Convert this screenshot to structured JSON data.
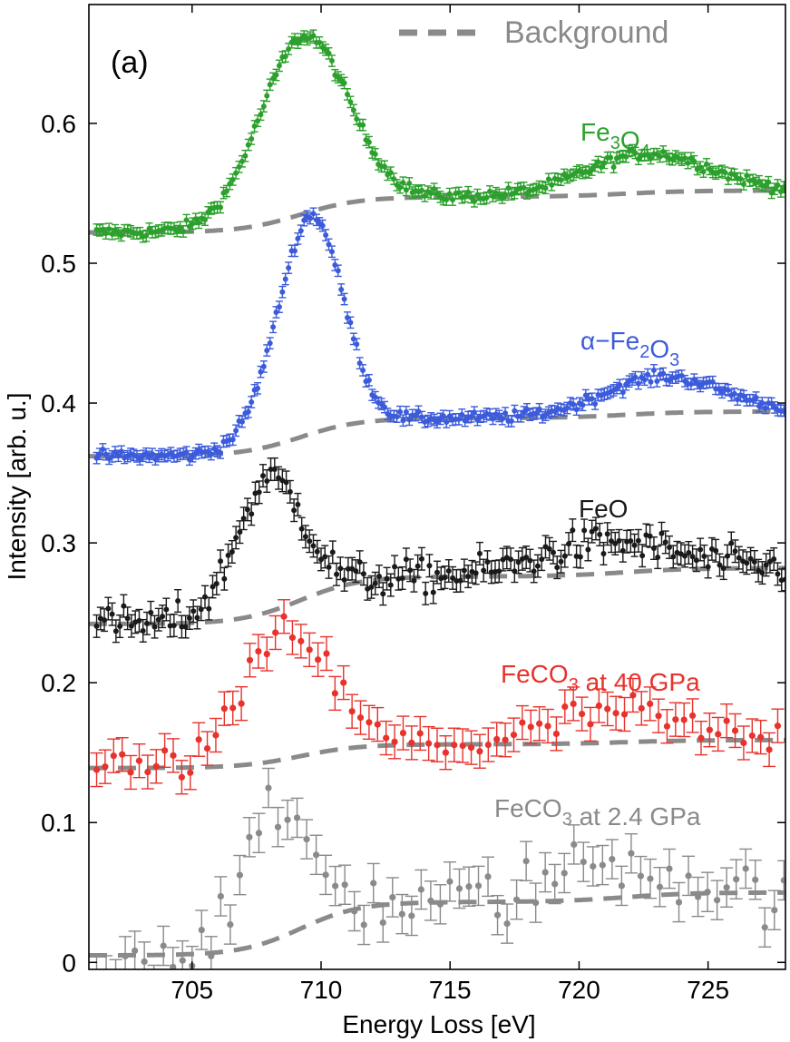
{
  "chart_data": {
    "type": "scatter",
    "panel_label": "(a)",
    "xlabel": "Energy Loss [eV]",
    "ylabel": "Intensity [arb. u.]",
    "xlim": [
      701,
      728
    ],
    "ylim": [
      -0.005,
      0.685
    ],
    "xticks": [
      705,
      710,
      715,
      720,
      725
    ],
    "yticks": [
      0,
      0.1,
      0.2,
      0.3,
      0.4,
      0.5,
      0.6
    ],
    "legend": {
      "label": "Background",
      "style": "dashed",
      "color": "#888888",
      "position": "top-right"
    },
    "colors": {
      "background": "#8a8a8a"
    },
    "series": [
      {
        "key": "fe3o4",
        "label_main": "Fe",
        "label_sub1": "3",
        "label_mid": "O",
        "label_sub2": "4",
        "label_tail": "",
        "color": "#2ca02c",
        "baseline": 0.522,
        "bg_step": 0.03,
        "peaks": [
          {
            "center": 709.3,
            "height": 0.127,
            "width": 1.7
          },
          {
            "center": 722.6,
            "height": 0.028,
            "width": 2.4
          }
        ],
        "x_start": 701.3,
        "x_end": 728,
        "step": 0.12,
        "err": 0.004,
        "noise": 0.002
      },
      {
        "key": "fe2o3",
        "label_main": "α−Fe",
        "label_sub1": "2",
        "label_mid": "O",
        "label_sub2": "3",
        "label_tail": "",
        "color": "#3b5bdb",
        "baseline": 0.362,
        "bg_step": 0.032,
        "peaks": [
          {
            "center": 709.8,
            "height": 0.13,
            "width": 1.15
          },
          {
            "center": 708.6,
            "height": 0.04,
            "width": 1.2
          },
          {
            "center": 723.2,
            "height": 0.026,
            "width": 2.3
          }
        ],
        "x_start": 701.3,
        "x_end": 728,
        "step": 0.12,
        "err": 0.004,
        "noise": 0.002
      },
      {
        "key": "feo",
        "label_main": "FeO",
        "label_sub1": "",
        "label_mid": "",
        "label_sub2": "",
        "label_tail": "",
        "color": "#1a1a1a",
        "baseline": 0.242,
        "bg_step": 0.04,
        "peaks": [
          {
            "center": 708.0,
            "height": 0.095,
            "width": 1.3
          },
          {
            "center": 721.0,
            "height": 0.022,
            "width": 2.5
          }
        ],
        "x_start": 701.3,
        "x_end": 728,
        "step": 0.15,
        "err": 0.008,
        "noise": 0.006
      },
      {
        "key": "feco3_40",
        "label_main": "FeCO",
        "label_sub1": "3",
        "label_mid": " at 40 GPa",
        "label_sub2": "",
        "label_tail": "",
        "color": "#e8322c",
        "baseline": 0.139,
        "bg_step": 0.02,
        "peaks": [
          {
            "center": 708.7,
            "height": 0.092,
            "width": 1.6
          },
          {
            "center": 721.3,
            "height": 0.022,
            "width": 2.2
          }
        ],
        "x_start": 701.3,
        "x_end": 728,
        "step": 0.33,
        "err": 0.012,
        "noise": 0.007
      },
      {
        "key": "feco3_24",
        "label_main": "FeCO",
        "label_sub1": "3",
        "label_mid": " at 2.4 GPa",
        "label_sub2": "",
        "label_tail": "",
        "color": "#8a8a8a",
        "baseline": 0.005,
        "bg_step": 0.045,
        "peaks": [
          {
            "center": 708.3,
            "height": 0.085,
            "width": 1.4
          },
          {
            "center": 721.2,
            "height": 0.027,
            "width": 2.2
          }
        ],
        "x_start": 701.3,
        "x_end": 728,
        "step": 0.37,
        "err": 0.014,
        "noise": 0.011
      }
    ]
  }
}
